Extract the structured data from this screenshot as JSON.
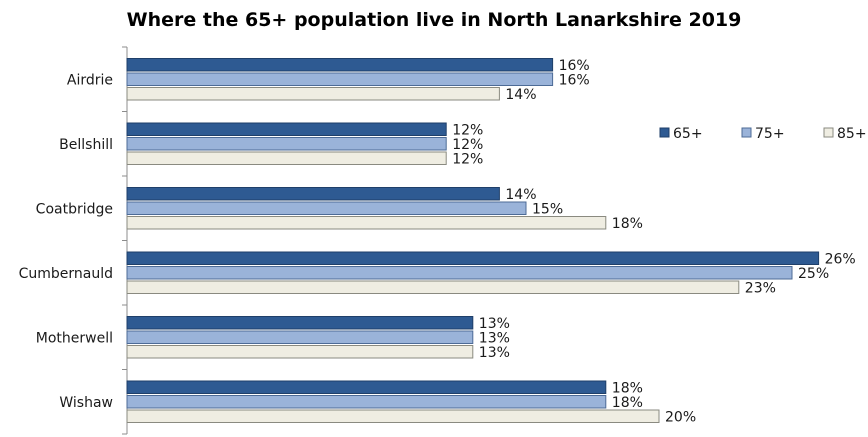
{
  "chart_data": {
    "type": "bar",
    "orientation": "horizontal",
    "title": "Where the 65+ population live in North Lanarkshire  2019",
    "xlabel": "",
    "ylabel": "",
    "categories": [
      "Airdrie",
      "Bellshill",
      "Coatbridge",
      "Cumbernauld",
      "Motherwell",
      "Wishaw"
    ],
    "series": [
      {
        "name": "65+",
        "values": [
          16,
          12,
          14,
          26,
          13,
          18
        ],
        "labels": [
          "16%",
          "12%",
          "14%",
          "26%",
          "13%",
          "18%"
        ],
        "color": "#2e5a92",
        "stroke": "#1f3f69"
      },
      {
        "name": "75+",
        "values": [
          16,
          12,
          15,
          25,
          13,
          18
        ],
        "labels": [
          "16%",
          "12%",
          "15%",
          "25%",
          "13%",
          "18%"
        ],
        "color": "#9ab3d9",
        "stroke": "#4d6b96"
      },
      {
        "name": "85+",
        "values": [
          14,
          12,
          18,
          23,
          13,
          20
        ],
        "labels": [
          "14%",
          "12%",
          "18%",
          "23%",
          "13%",
          "20%"
        ],
        "color": "#efede2",
        "stroke": "#8a8a80"
      }
    ],
    "xlim": [
      0,
      26
    ],
    "grid": false,
    "legend": "right"
  }
}
